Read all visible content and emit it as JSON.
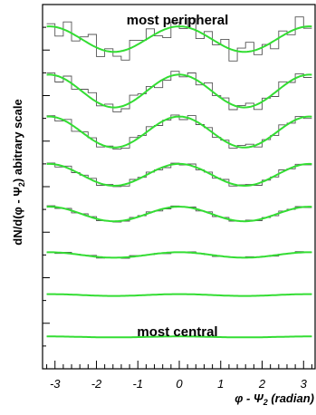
{
  "chart_data": {
    "type": "line",
    "title": "",
    "ylabel": "dN/d(φ - Ψ₂) abitrary scale",
    "xlabel": "φ - Ψ₂ (radian)",
    "xlabel_parts": {
      "prefix": "φ - Ψ",
      "sub": "2",
      "suffix": " (radian)"
    },
    "ylabel_parts": {
      "prefix": "dN/d(φ - Ψ",
      "sub": "2",
      "suffix": ") abitrary scale"
    },
    "xlim": [
      -3.3,
      3.3
    ],
    "ylim": [
      0,
      400
    ],
    "x_ticks": [
      -3,
      -2,
      -1,
      0,
      1,
      2,
      3
    ],
    "x_tick_labels": [
      "-3",
      "-2",
      "-1",
      "0",
      "1",
      "2",
      "3"
    ],
    "top_annotation": "most peripheral",
    "bottom_annotation": "most central",
    "grid": false,
    "legend": "none",
    "colors": {
      "fit": "#33dd33",
      "histogram": "#555555",
      "axis": "#000000"
    },
    "series": [
      {
        "offset": 362,
        "amplitude": 14,
        "noise": [
          3,
          -9,
          10,
          -6,
          4,
          12,
          -8,
          3,
          -5,
          -11,
          7,
          2,
          9,
          -4,
          -10,
          5,
          -2,
          11,
          -7,
          6,
          -3,
          8,
          -12,
          4,
          10,
          -6,
          1,
          -9,
          5,
          -4,
          12,
          -2
        ]
      },
      {
        "offset": 305,
        "amplitude": 18,
        "noise": [
          2,
          -6,
          5,
          -3,
          4,
          7,
          -2,
          3,
          -5,
          -4,
          6,
          1,
          2,
          -6,
          -3,
          4,
          -2,
          5,
          -3,
          6,
          -1,
          3,
          -5,
          2,
          4,
          -6,
          1,
          -4,
          5,
          -2,
          3,
          -3
        ]
      },
      {
        "offset": 260,
        "amplitude": 17,
        "noise": [
          1,
          -3,
          3,
          -4,
          2,
          2,
          -3,
          1,
          -2,
          -3,
          4,
          0,
          3,
          -2,
          -1,
          2,
          -3,
          4,
          -1,
          2,
          -2,
          1,
          -3,
          2,
          3,
          -3,
          0,
          -2,
          3,
          -1,
          2,
          -2
        ]
      },
      {
        "offset": 213,
        "amplitude": 12,
        "noise": [
          1,
          -2,
          2,
          -1,
          1,
          2,
          -2,
          1,
          -1,
          -2,
          2,
          0,
          1,
          -1,
          -2,
          1,
          -1,
          2,
          -1,
          1,
          -1,
          2,
          -2,
          1,
          1,
          -2,
          0,
          -1,
          2,
          -1,
          1,
          -1
        ]
      },
      {
        "offset": 170,
        "amplitude": 8,
        "noise": [
          1,
          -1,
          1,
          -1,
          1,
          1,
          -1,
          0,
          -1,
          -1,
          1,
          0,
          1,
          -1,
          -1,
          1,
          0,
          1,
          -1,
          1,
          -1,
          1,
          -1,
          0,
          1,
          -1,
          0,
          -1,
          1,
          0,
          1,
          -1
        ]
      },
      {
        "offset": 125,
        "amplitude": 3,
        "noise": [
          0,
          -1,
          1,
          0,
          0,
          1,
          -1,
          0,
          0,
          -1,
          1,
          0,
          0,
          0,
          -1,
          0,
          0,
          1,
          0,
          0,
          -1,
          0,
          0,
          0,
          1,
          0,
          0,
          -1,
          0,
          0,
          1,
          0
        ]
      },
      {
        "offset": 81,
        "amplitude": 1,
        "noise": [
          0,
          0,
          0,
          0,
          0,
          0,
          0,
          0,
          0,
          0,
          0,
          0,
          0,
          0,
          0,
          0,
          0,
          0,
          0,
          0,
          0,
          0,
          0,
          0,
          0,
          0,
          0,
          0,
          0,
          0,
          0,
          0
        ]
      },
      {
        "offset": 35,
        "amplitude": 0.5,
        "noise": [
          0,
          0,
          0,
          0,
          0,
          0,
          0,
          0,
          0,
          0,
          0,
          0,
          0,
          0,
          0,
          0,
          0,
          0,
          0,
          0,
          0,
          0,
          0,
          0,
          0,
          0,
          0,
          0,
          0,
          0,
          0,
          0
        ]
      }
    ]
  }
}
